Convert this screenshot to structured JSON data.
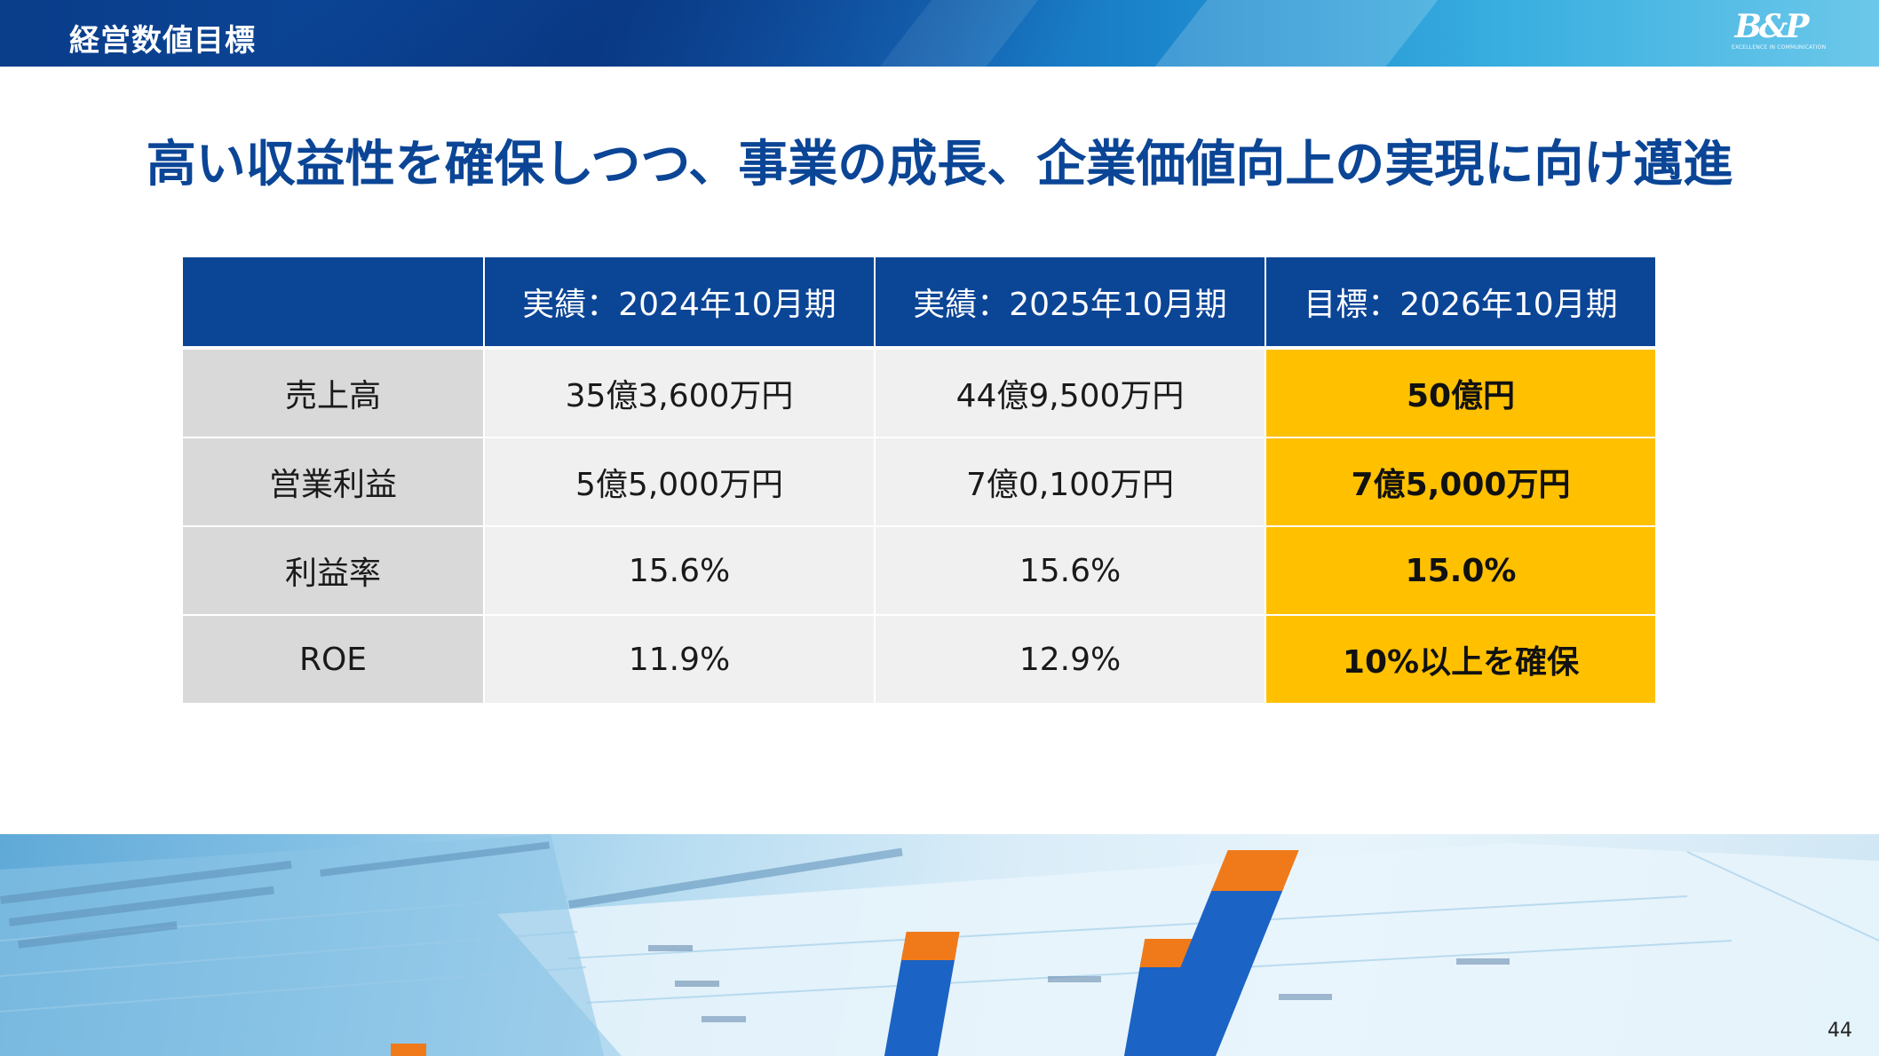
{
  "header": {
    "section_title": "経営数値目標",
    "logo_text": "B&P",
    "logo_tagline": "EXCELLENCE IN COMMUNICATION"
  },
  "headline": "高い収益性を確保しつつ、事業の成長、企業価値向上の実現に向け邁進",
  "table": {
    "columns": [
      "",
      "実績：2024年10月期",
      "実績：2025年10月期",
      "目標：2026年10月期"
    ],
    "rows": [
      {
        "label": "売上高",
        "fy2024": "35億3,600万円",
        "fy2025": "44億9,500万円",
        "target2026": "50億円"
      },
      {
        "label": "営業利益",
        "fy2024": "5億5,000万円",
        "fy2025": "7億0,100万円",
        "target2026": "7億5,000万円"
      },
      {
        "label": "利益率",
        "fy2024": "15.6%",
        "fy2025": "15.6%",
        "target2026": "15.0%"
      },
      {
        "label": "ROE",
        "fy2024": "11.9%",
        "fy2025": "12.9%",
        "target2026": "10%以上を確保"
      }
    ]
  },
  "colors": {
    "brand_blue": "#0b4596",
    "target_highlight": "#ffc000",
    "row_header_gray": "#d9d9d9",
    "cell_gray": "#f0f0f0"
  },
  "decorative_photo": {
    "icon": "financial-report-photo"
  },
  "page_number": "44"
}
